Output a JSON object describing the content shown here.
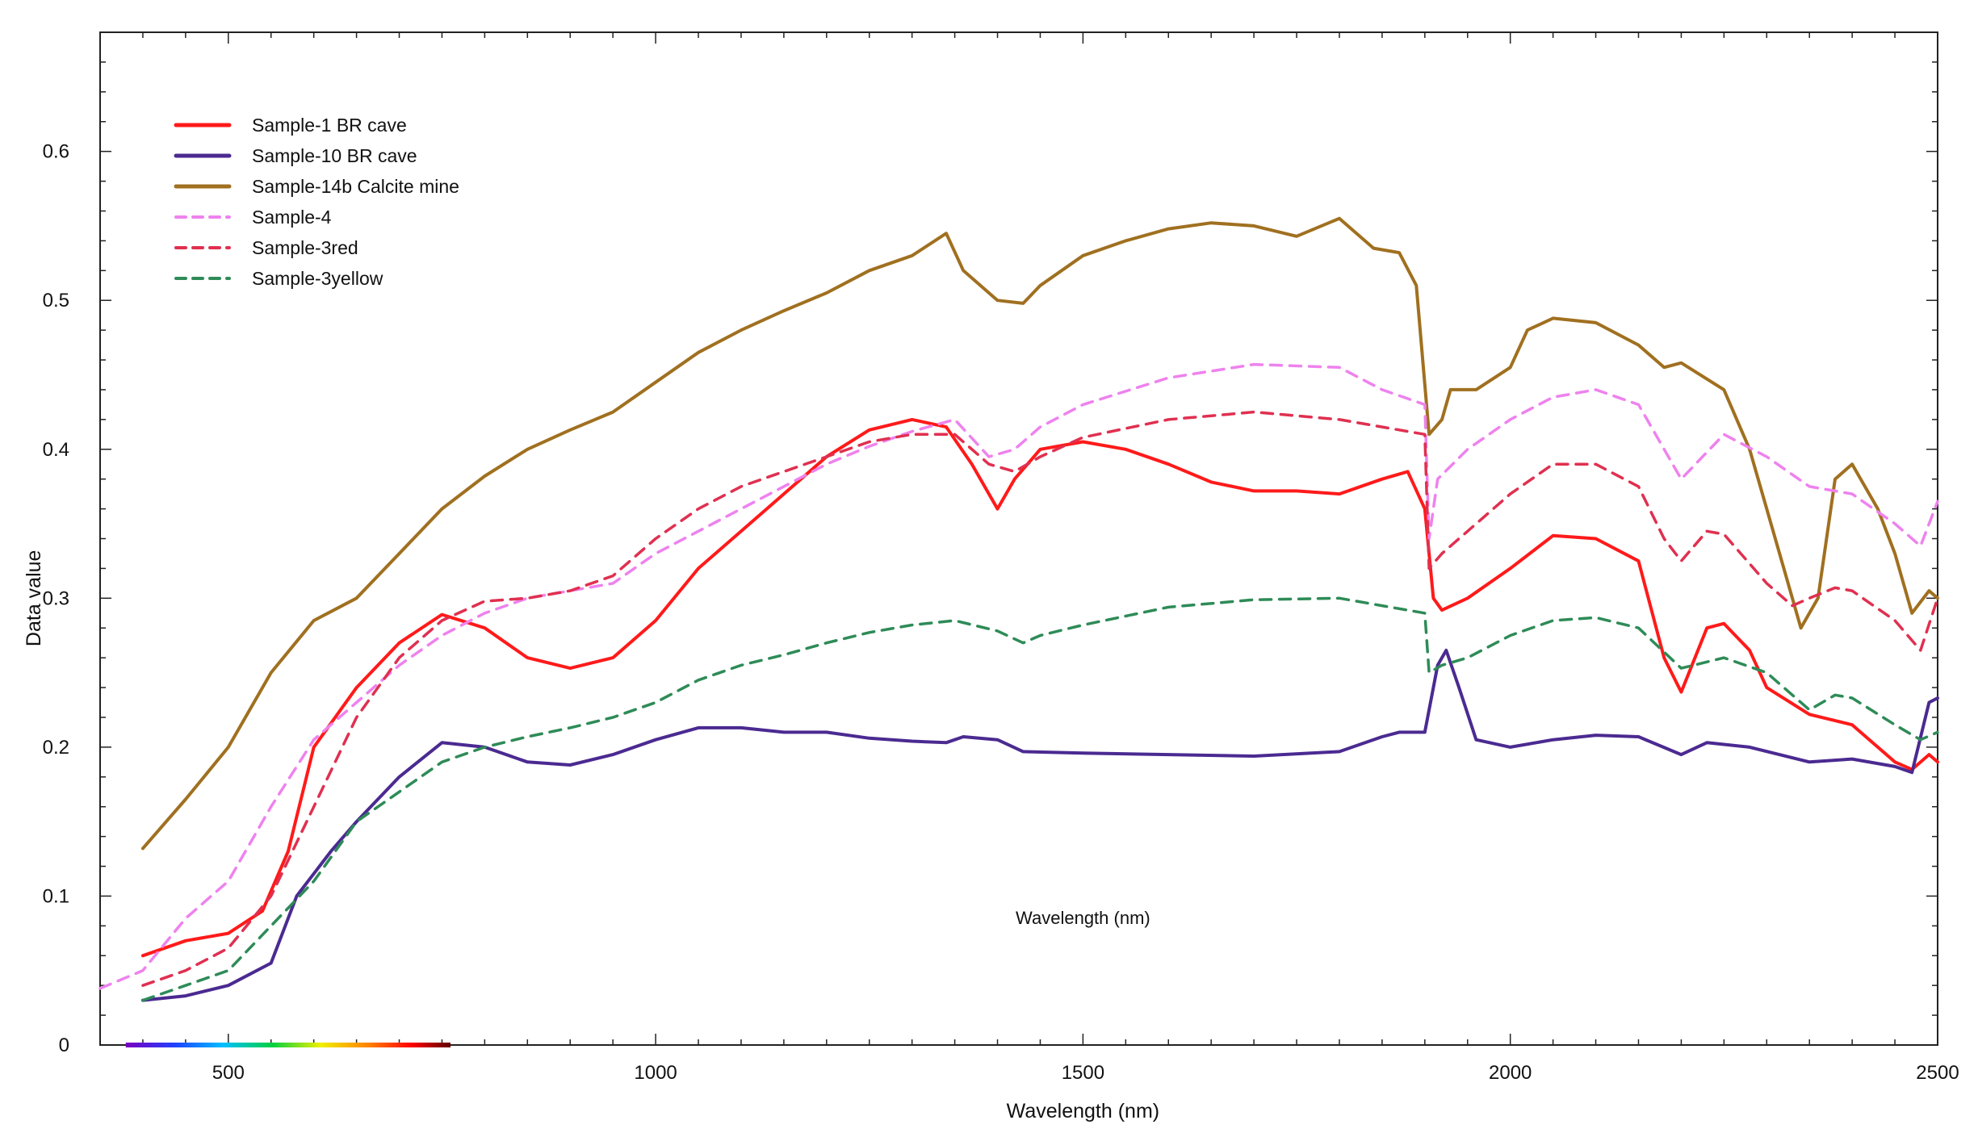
{
  "chart_data": {
    "type": "line",
    "title": "",
    "xlabel": "Wavelength (nm)",
    "ylabel": "Data value",
    "inner_label": "Wavelength (nm)",
    "xlim": [
      350,
      2500
    ],
    "ylim": [
      0,
      0.68
    ],
    "xticks": [
      500,
      1000,
      1500,
      2000,
      2500
    ],
    "xtick_labels": [
      "500",
      "1000",
      "1500",
      "2000",
      "2500"
    ],
    "yticks": [
      0,
      0.1,
      0.2,
      0.3,
      0.4,
      0.5,
      0.6
    ],
    "ytick_labels": [
      "0",
      "0.1",
      "0.2",
      "0.3",
      "0.4",
      "0.5",
      "0.6"
    ],
    "legend_position": "top-left",
    "grid": false,
    "spectrum_bar": true,
    "series": [
      {
        "name": "Sample-1 BR cave",
        "color": "#ff1a1a",
        "style": "solid",
        "points": [
          [
            400,
            0.06
          ],
          [
            450,
            0.07
          ],
          [
            500,
            0.075
          ],
          [
            540,
            0.09
          ],
          [
            570,
            0.13
          ],
          [
            600,
            0.2
          ],
          [
            650,
            0.24
          ],
          [
            700,
            0.27
          ],
          [
            750,
            0.289
          ],
          [
            800,
            0.28
          ],
          [
            850,
            0.26
          ],
          [
            900,
            0.253
          ],
          [
            950,
            0.26
          ],
          [
            1000,
            0.285
          ],
          [
            1050,
            0.32
          ],
          [
            1100,
            0.345
          ],
          [
            1150,
            0.37
          ],
          [
            1200,
            0.395
          ],
          [
            1250,
            0.413
          ],
          [
            1300,
            0.42
          ],
          [
            1340,
            0.415
          ],
          [
            1370,
            0.39
          ],
          [
            1400,
            0.36
          ],
          [
            1420,
            0.38
          ],
          [
            1450,
            0.4
          ],
          [
            1500,
            0.405
          ],
          [
            1550,
            0.4
          ],
          [
            1600,
            0.39
          ],
          [
            1650,
            0.378
          ],
          [
            1700,
            0.372
          ],
          [
            1750,
            0.372
          ],
          [
            1800,
            0.37
          ],
          [
            1850,
            0.38
          ],
          [
            1880,
            0.385
          ],
          [
            1900,
            0.36
          ],
          [
            1910,
            0.3
          ],
          [
            1920,
            0.292
          ],
          [
            1950,
            0.3
          ],
          [
            2000,
            0.32
          ],
          [
            2050,
            0.342
          ],
          [
            2100,
            0.34
          ],
          [
            2150,
            0.325
          ],
          [
            2180,
            0.26
          ],
          [
            2200,
            0.237
          ],
          [
            2230,
            0.28
          ],
          [
            2250,
            0.283
          ],
          [
            2280,
            0.265
          ],
          [
            2300,
            0.24
          ],
          [
            2350,
            0.222
          ],
          [
            2400,
            0.215
          ],
          [
            2450,
            0.19
          ],
          [
            2470,
            0.185
          ],
          [
            2490,
            0.195
          ],
          [
            2500,
            0.19
          ]
        ]
      },
      {
        "name": "Sample-10 BR cave",
        "color": "#4b2a91",
        "style": "solid",
        "points": [
          [
            400,
            0.03
          ],
          [
            450,
            0.033
          ],
          [
            500,
            0.04
          ],
          [
            550,
            0.055
          ],
          [
            580,
            0.1
          ],
          [
            620,
            0.13
          ],
          [
            650,
            0.15
          ],
          [
            700,
            0.18
          ],
          [
            750,
            0.203
          ],
          [
            800,
            0.2
          ],
          [
            850,
            0.19
          ],
          [
            900,
            0.188
          ],
          [
            950,
            0.195
          ],
          [
            1000,
            0.205
          ],
          [
            1050,
            0.213
          ],
          [
            1100,
            0.213
          ],
          [
            1150,
            0.21
          ],
          [
            1200,
            0.21
          ],
          [
            1250,
            0.206
          ],
          [
            1300,
            0.204
          ],
          [
            1340,
            0.203
          ],
          [
            1360,
            0.207
          ],
          [
            1400,
            0.205
          ],
          [
            1430,
            0.197
          ],
          [
            1500,
            0.196
          ],
          [
            1600,
            0.195
          ],
          [
            1700,
            0.194
          ],
          [
            1800,
            0.197
          ],
          [
            1850,
            0.207
          ],
          [
            1870,
            0.21
          ],
          [
            1900,
            0.21
          ],
          [
            1915,
            0.255
          ],
          [
            1925,
            0.265
          ],
          [
            1940,
            0.24
          ],
          [
            1960,
            0.205
          ],
          [
            2000,
            0.2
          ],
          [
            2050,
            0.205
          ],
          [
            2100,
            0.208
          ],
          [
            2150,
            0.207
          ],
          [
            2200,
            0.195
          ],
          [
            2230,
            0.203
          ],
          [
            2280,
            0.2
          ],
          [
            2350,
            0.19
          ],
          [
            2400,
            0.192
          ],
          [
            2450,
            0.187
          ],
          [
            2470,
            0.183
          ],
          [
            2490,
            0.23
          ],
          [
            2500,
            0.233
          ]
        ]
      },
      {
        "name": "Sample-14b Calcite mine",
        "color": "#a07020",
        "style": "solid",
        "points": [
          [
            400,
            0.132
          ],
          [
            450,
            0.165
          ],
          [
            500,
            0.2
          ],
          [
            550,
            0.25
          ],
          [
            600,
            0.285
          ],
          [
            650,
            0.3
          ],
          [
            700,
            0.33
          ],
          [
            750,
            0.36
          ],
          [
            800,
            0.382
          ],
          [
            850,
            0.4
          ],
          [
            900,
            0.413
          ],
          [
            950,
            0.425
          ],
          [
            1000,
            0.445
          ],
          [
            1050,
            0.465
          ],
          [
            1100,
            0.48
          ],
          [
            1150,
            0.493
          ],
          [
            1200,
            0.505
          ],
          [
            1250,
            0.52
          ],
          [
            1300,
            0.53
          ],
          [
            1340,
            0.545
          ],
          [
            1360,
            0.52
          ],
          [
            1400,
            0.5
          ],
          [
            1430,
            0.498
          ],
          [
            1450,
            0.51
          ],
          [
            1500,
            0.53
          ],
          [
            1550,
            0.54
          ],
          [
            1600,
            0.548
          ],
          [
            1650,
            0.552
          ],
          [
            1700,
            0.55
          ],
          [
            1750,
            0.543
          ],
          [
            1800,
            0.555
          ],
          [
            1840,
            0.535
          ],
          [
            1870,
            0.532
          ],
          [
            1890,
            0.51
          ],
          [
            1905,
            0.41
          ],
          [
            1920,
            0.42
          ],
          [
            1930,
            0.44
          ],
          [
            1960,
            0.44
          ],
          [
            2000,
            0.455
          ],
          [
            2020,
            0.48
          ],
          [
            2050,
            0.488
          ],
          [
            2100,
            0.485
          ],
          [
            2150,
            0.47
          ],
          [
            2180,
            0.455
          ],
          [
            2200,
            0.458
          ],
          [
            2250,
            0.44
          ],
          [
            2280,
            0.4
          ],
          [
            2300,
            0.36
          ],
          [
            2320,
            0.32
          ],
          [
            2340,
            0.28
          ],
          [
            2360,
            0.3
          ],
          [
            2380,
            0.38
          ],
          [
            2400,
            0.39
          ],
          [
            2430,
            0.36
          ],
          [
            2450,
            0.33
          ],
          [
            2470,
            0.29
          ],
          [
            2490,
            0.305
          ],
          [
            2500,
            0.3
          ]
        ]
      },
      {
        "name": "Sample-4",
        "color": "#ee82ee",
        "style": "dashed",
        "points": [
          [
            350,
            0.038
          ],
          [
            400,
            0.05
          ],
          [
            450,
            0.085
          ],
          [
            500,
            0.11
          ],
          [
            550,
            0.16
          ],
          [
            600,
            0.205
          ],
          [
            650,
            0.23
          ],
          [
            700,
            0.255
          ],
          [
            750,
            0.275
          ],
          [
            800,
            0.29
          ],
          [
            850,
            0.3
          ],
          [
            900,
            0.305
          ],
          [
            950,
            0.31
          ],
          [
            1000,
            0.33
          ],
          [
            1050,
            0.345
          ],
          [
            1100,
            0.36
          ],
          [
            1150,
            0.375
          ],
          [
            1200,
            0.39
          ],
          [
            1250,
            0.402
          ],
          [
            1300,
            0.412
          ],
          [
            1350,
            0.42
          ],
          [
            1390,
            0.395
          ],
          [
            1420,
            0.4
          ],
          [
            1450,
            0.415
          ],
          [
            1500,
            0.43
          ],
          [
            1600,
            0.448
          ],
          [
            1700,
            0.457
          ],
          [
            1800,
            0.455
          ],
          [
            1850,
            0.44
          ],
          [
            1900,
            0.43
          ],
          [
            1905,
            0.34
          ],
          [
            1915,
            0.38
          ],
          [
            1950,
            0.4
          ],
          [
            2000,
            0.42
          ],
          [
            2050,
            0.435
          ],
          [
            2100,
            0.44
          ],
          [
            2150,
            0.43
          ],
          [
            2200,
            0.38
          ],
          [
            2250,
            0.41
          ],
          [
            2300,
            0.395
          ],
          [
            2350,
            0.375
          ],
          [
            2400,
            0.37
          ],
          [
            2450,
            0.35
          ],
          [
            2480,
            0.335
          ],
          [
            2500,
            0.365
          ]
        ]
      },
      {
        "name": "Sample-3red",
        "color": "#e03050",
        "style": "dashed",
        "points": [
          [
            400,
            0.04
          ],
          [
            450,
            0.05
          ],
          [
            500,
            0.065
          ],
          [
            550,
            0.1
          ],
          [
            600,
            0.16
          ],
          [
            650,
            0.22
          ],
          [
            700,
            0.26
          ],
          [
            750,
            0.285
          ],
          [
            800,
            0.298
          ],
          [
            850,
            0.3
          ],
          [
            900,
            0.305
          ],
          [
            950,
            0.315
          ],
          [
            1000,
            0.34
          ],
          [
            1050,
            0.36
          ],
          [
            1100,
            0.375
          ],
          [
            1150,
            0.385
          ],
          [
            1200,
            0.395
          ],
          [
            1250,
            0.405
          ],
          [
            1300,
            0.41
          ],
          [
            1350,
            0.41
          ],
          [
            1390,
            0.39
          ],
          [
            1420,
            0.385
          ],
          [
            1450,
            0.395
          ],
          [
            1500,
            0.408
          ],
          [
            1600,
            0.42
          ],
          [
            1700,
            0.425
          ],
          [
            1800,
            0.42
          ],
          [
            1850,
            0.415
          ],
          [
            1900,
            0.41
          ],
          [
            1905,
            0.32
          ],
          [
            1920,
            0.33
          ],
          [
            1950,
            0.345
          ],
          [
            2000,
            0.37
          ],
          [
            2050,
            0.39
          ],
          [
            2100,
            0.39
          ],
          [
            2150,
            0.375
          ],
          [
            2180,
            0.34
          ],
          [
            2200,
            0.325
          ],
          [
            2230,
            0.345
          ],
          [
            2250,
            0.343
          ],
          [
            2300,
            0.31
          ],
          [
            2330,
            0.295
          ],
          [
            2350,
            0.3
          ],
          [
            2380,
            0.307
          ],
          [
            2400,
            0.305
          ],
          [
            2450,
            0.285
          ],
          [
            2480,
            0.265
          ],
          [
            2500,
            0.3
          ]
        ]
      },
      {
        "name": "Sample-3yellow",
        "color": "#2e8b57",
        "style": "dashed",
        "points": [
          [
            400,
            0.03
          ],
          [
            450,
            0.04
          ],
          [
            500,
            0.05
          ],
          [
            550,
            0.08
          ],
          [
            600,
            0.11
          ],
          [
            650,
            0.15
          ],
          [
            700,
            0.17
          ],
          [
            750,
            0.19
          ],
          [
            800,
            0.2
          ],
          [
            850,
            0.207
          ],
          [
            900,
            0.213
          ],
          [
            950,
            0.22
          ],
          [
            1000,
            0.23
          ],
          [
            1050,
            0.245
          ],
          [
            1100,
            0.255
          ],
          [
            1150,
            0.262
          ],
          [
            1200,
            0.27
          ],
          [
            1250,
            0.277
          ],
          [
            1300,
            0.282
          ],
          [
            1350,
            0.285
          ],
          [
            1400,
            0.278
          ],
          [
            1430,
            0.27
          ],
          [
            1450,
            0.275
          ],
          [
            1500,
            0.282
          ],
          [
            1600,
            0.294
          ],
          [
            1700,
            0.299
          ],
          [
            1800,
            0.3
          ],
          [
            1850,
            0.295
          ],
          [
            1900,
            0.29
          ],
          [
            1905,
            0.25
          ],
          [
            1920,
            0.255
          ],
          [
            1950,
            0.26
          ],
          [
            2000,
            0.275
          ],
          [
            2050,
            0.285
          ],
          [
            2100,
            0.287
          ],
          [
            2150,
            0.28
          ],
          [
            2200,
            0.253
          ],
          [
            2250,
            0.26
          ],
          [
            2300,
            0.25
          ],
          [
            2350,
            0.225
          ],
          [
            2380,
            0.235
          ],
          [
            2400,
            0.233
          ],
          [
            2450,
            0.215
          ],
          [
            2480,
            0.205
          ],
          [
            2500,
            0.21
          ]
        ]
      }
    ]
  }
}
